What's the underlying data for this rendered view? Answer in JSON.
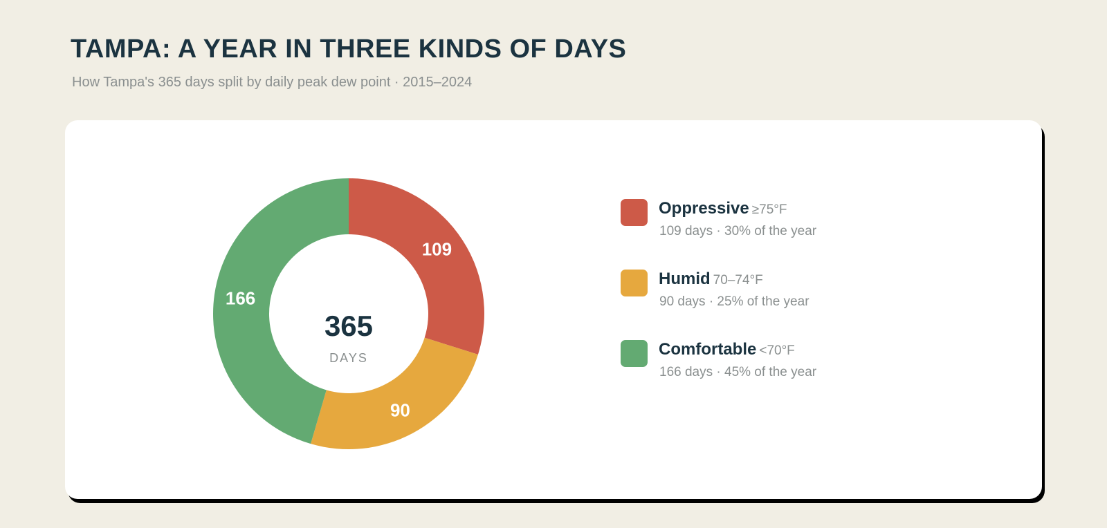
{
  "header": {
    "title": "TAMPA: A YEAR IN THREE KINDS OF DAYS",
    "subtitle": "How Tampa's 365 days split by daily peak dew point · 2015–2024"
  },
  "chart_data": {
    "type": "pie",
    "variant": "donut",
    "total": 365,
    "center_value": "365",
    "center_label": "DAYS",
    "slices": [
      {
        "name": "Oppressive",
        "range": "≥75°F",
        "value": 109,
        "label": "109",
        "detail": "109 days · 30% of the year",
        "color": "#cd5a48"
      },
      {
        "name": "Humid",
        "range": "70–74°F",
        "value": 90,
        "label": "90",
        "detail": "90 days · 25% of the year",
        "color": "#e6a83e"
      },
      {
        "name": "Comfortable",
        "range": "<70°F",
        "value": 166,
        "label": "166",
        "detail": "166 days · 45% of the year",
        "color": "#63aa72"
      }
    ],
    "legend_position": "right"
  }
}
